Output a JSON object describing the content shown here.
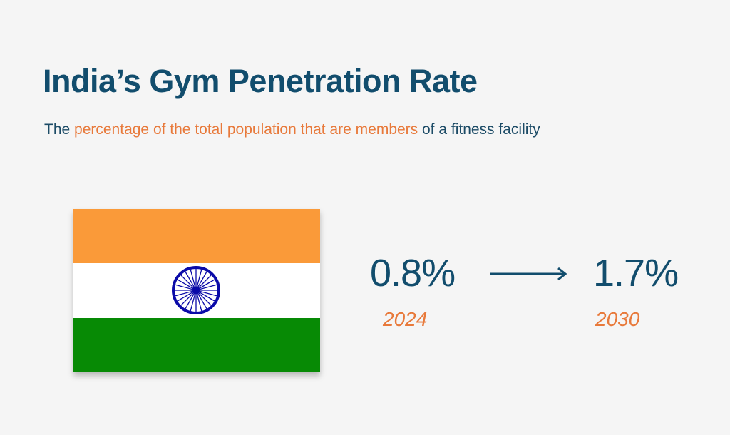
{
  "title": "India’s Gym Penetration Rate",
  "subtitle": {
    "prefix": "The ",
    "highlight": "percentage of the total population that are members",
    "suffix": " of a fitness facility"
  },
  "flag": {
    "country": "India",
    "colors": {
      "saffron": "#fa9a39",
      "white": "#ffffff",
      "green": "#078a05",
      "chakra": "#0a0aa8"
    }
  },
  "stats": [
    {
      "value": "0.8%",
      "year": "2024"
    },
    {
      "value": "1.7%",
      "year": "2030"
    }
  ],
  "colors": {
    "primary": "#124d6d",
    "accent": "#e8793a",
    "background": "#f5f5f5"
  }
}
